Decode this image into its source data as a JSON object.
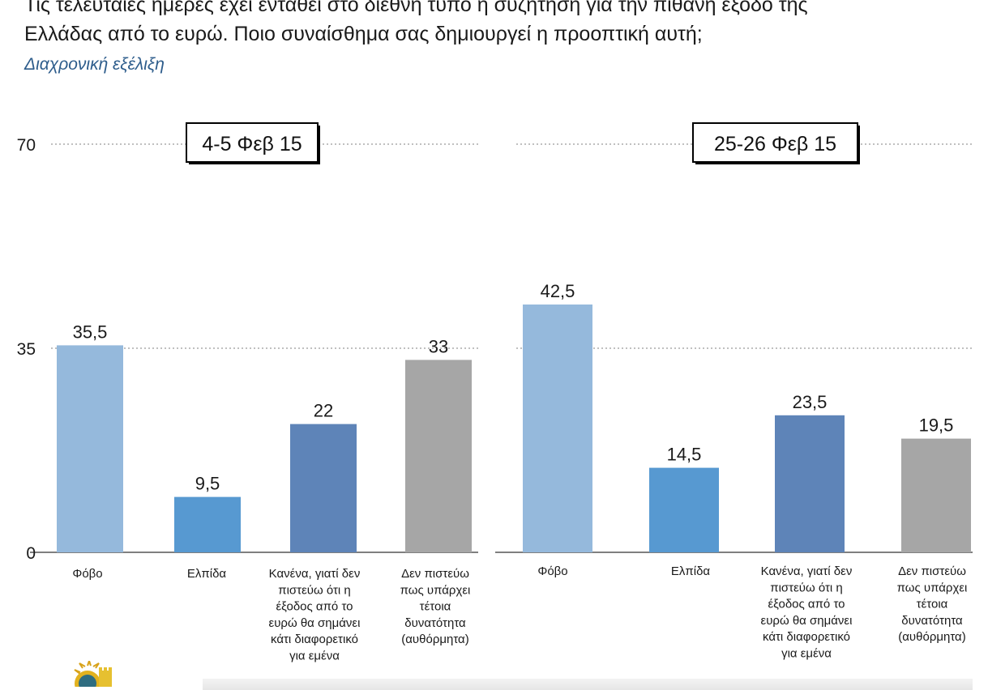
{
  "question": "Τις τελευταίες ημέρες έχει ενταθεί στο διεθνή τύπο η συζήτηση για την πιθανή έξοδο της\nΕλλάδας από το ευρώ. Ποιο συναίσθημα σας δημιουργεί η προοπτική αυτή;",
  "subtitle": "Διαχρονική εξέλιξη",
  "colors": {
    "bar_1": "#95b9dc",
    "bar_2": "#5799d1",
    "bar_3": "#5e84b8",
    "bar_4": "#a6a6a6",
    "subtitle": "#2e5d8c"
  },
  "chart_data": [
    {
      "type": "bar",
      "title": "4-5 Φεβ 15",
      "categories": [
        "Φόβο",
        "Ελπίδα",
        "Κανένα, γιατί δεν πιστεύω ότι η έξοδος από το ευρώ θα σημάνει κάτι διαφορετικό για εμένα",
        "Δεν πιστεύω πως υπάρχει τέτοια δυνατότητα (αυθόρμητα)"
      ],
      "values": [
        35.5,
        9.5,
        22,
        33
      ],
      "value_labels": [
        "35,5",
        "9,5",
        "22",
        "33"
      ],
      "yticks": [
        "0",
        "35",
        "70"
      ],
      "ylim": [
        0,
        70
      ],
      "grid": true
    },
    {
      "type": "bar",
      "title": "25-26 Φεβ 15",
      "categories": [
        "Φόβο",
        "Ελπίδα",
        "Κανένα, γιατί δεν πιστεύω ότι η έξοδος από το ευρώ θα σημάνει κάτι διαφορετικό για εμένα",
        "Δεν πιστεύω πως υπάρχει τέτοια δυνατότητα (αυθόρμητα)"
      ],
      "values": [
        42.5,
        14.5,
        23.5,
        19.5
      ],
      "value_labels": [
        "42,5",
        "14,5",
        "23,5",
        "19,5"
      ],
      "ylim": [
        0,
        70
      ],
      "grid": true
    }
  ]
}
